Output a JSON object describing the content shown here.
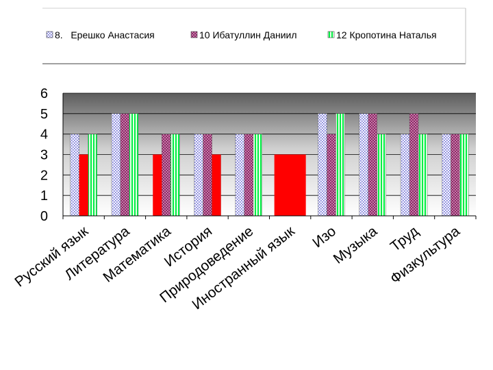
{
  "chart_data": {
    "type": "bar",
    "categories": [
      "Русский язык",
      "Литература",
      "Математика",
      "История",
      "Природоведение",
      "Иностранный язык",
      "Изо",
      "Музыка",
      "Труд",
      "Физкультура"
    ],
    "series": [
      {
        "name": "8.   Ерешко Анастасия",
        "values": [
          4,
          5,
          null,
          4,
          4,
          null,
          5,
          5,
          4,
          4
        ],
        "color": "#eaeaff",
        "pattern": "dots-blue"
      },
      {
        "name": "10 Ибатуллин Даниил",
        "values": [
          3,
          5,
          4,
          4,
          4,
          null,
          4,
          5,
          5,
          4
        ],
        "color": "#b05a90",
        "pattern": "checker-purple"
      },
      {
        "name": "12 Кропотина Наталья",
        "values": [
          4,
          5,
          4,
          3,
          4,
          null,
          5,
          4,
          4,
          4
        ],
        "color": "#00ee44",
        "pattern": "stripes-green"
      }
    ],
    "red_bars": [
      {
        "category": "Русский язык",
        "value": 3
      },
      {
        "category": "Математика",
        "value": 3
      },
      {
        "category": "История",
        "value": 3
      },
      {
        "category": "Иностранный язык",
        "value": 3
      }
    ],
    "red_color": "#ff0000",
    "ylim": [
      0,
      6
    ],
    "yticks": [
      "0",
      "1",
      "2",
      "3",
      "4",
      "5",
      "6"
    ],
    "grid": true,
    "legend_position": "top",
    "title": "",
    "xlabel": "",
    "ylabel": ""
  }
}
